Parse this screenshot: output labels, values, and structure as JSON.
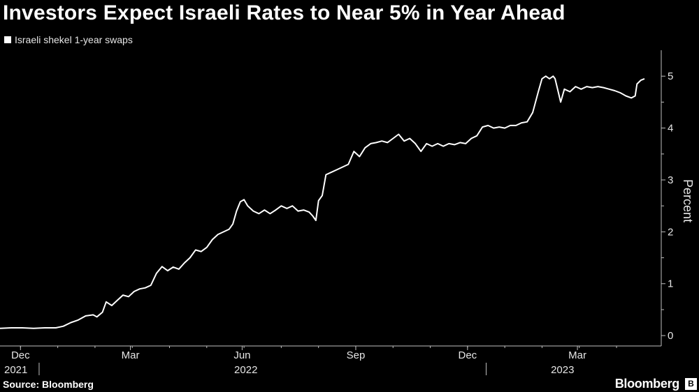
{
  "header": {
    "title": "Investors Expect Israeli Rates to Near 5% in Year Ahead",
    "legend_label": "Israeli shekel 1-year swaps"
  },
  "footer": {
    "source": "Source: Bloomberg",
    "brand": "Bloomberg",
    "brand_mark": "B"
  },
  "colors": {
    "background": "#000000",
    "line": "#ffffff",
    "axis": "#bfbfbf"
  },
  "chart_data": {
    "type": "line",
    "title": "Investors Expect Israeli Rates to Near 5% in Year Ahead",
    "ylabel": "Percent",
    "xlabel": "",
    "ylim": [
      -0.2,
      5.5
    ],
    "yticks": [
      0,
      1,
      2,
      3,
      4,
      5
    ],
    "x_unit": "months since 2021-11-15",
    "xlim": [
      0,
      17.3
    ],
    "month_ticks": [
      {
        "x": 0.55,
        "label": "Dec"
      },
      {
        "x": 3.5,
        "label": "Mar"
      },
      {
        "x": 6.5,
        "label": "Jun"
      },
      {
        "x": 9.55,
        "label": "Sep"
      },
      {
        "x": 12.55,
        "label": "Dec"
      },
      {
        "x": 15.5,
        "label": "Mar"
      }
    ],
    "year_labels": [
      {
        "x": 0.2,
        "label": "2021"
      },
      {
        "x": 6.6,
        "label": "2022"
      },
      {
        "x": 15.1,
        "label": "2023"
      }
    ],
    "year_dividers": [
      1.05,
      13.05
    ],
    "series": [
      {
        "name": "Israeli shekel 1-year swaps",
        "points": [
          [
            0.0,
            0.14
          ],
          [
            0.3,
            0.15
          ],
          [
            0.6,
            0.15
          ],
          [
            0.9,
            0.14
          ],
          [
            1.2,
            0.15
          ],
          [
            1.5,
            0.15
          ],
          [
            1.7,
            0.18
          ],
          [
            1.9,
            0.25
          ],
          [
            2.1,
            0.3
          ],
          [
            2.3,
            0.38
          ],
          [
            2.5,
            0.4
          ],
          [
            2.6,
            0.36
          ],
          [
            2.75,
            0.45
          ],
          [
            2.85,
            0.65
          ],
          [
            3.0,
            0.58
          ],
          [
            3.15,
            0.68
          ],
          [
            3.3,
            0.78
          ],
          [
            3.45,
            0.75
          ],
          [
            3.6,
            0.85
          ],
          [
            3.75,
            0.9
          ],
          [
            3.9,
            0.92
          ],
          [
            4.05,
            0.97
          ],
          [
            4.2,
            1.2
          ],
          [
            4.35,
            1.33
          ],
          [
            4.5,
            1.25
          ],
          [
            4.65,
            1.32
          ],
          [
            4.8,
            1.28
          ],
          [
            4.95,
            1.4
          ],
          [
            5.1,
            1.5
          ],
          [
            5.25,
            1.65
          ],
          [
            5.4,
            1.62
          ],
          [
            5.55,
            1.7
          ],
          [
            5.7,
            1.85
          ],
          [
            5.85,
            1.95
          ],
          [
            6.0,
            2.0
          ],
          [
            6.15,
            2.05
          ],
          [
            6.25,
            2.15
          ],
          [
            6.35,
            2.4
          ],
          [
            6.45,
            2.58
          ],
          [
            6.55,
            2.62
          ],
          [
            6.65,
            2.5
          ],
          [
            6.8,
            2.4
          ],
          [
            6.95,
            2.35
          ],
          [
            7.1,
            2.42
          ],
          [
            7.25,
            2.35
          ],
          [
            7.4,
            2.42
          ],
          [
            7.55,
            2.5
          ],
          [
            7.7,
            2.45
          ],
          [
            7.85,
            2.5
          ],
          [
            8.0,
            2.4
          ],
          [
            8.15,
            2.42
          ],
          [
            8.3,
            2.38
          ],
          [
            8.4,
            2.3
          ],
          [
            8.48,
            2.22
          ],
          [
            8.55,
            2.6
          ],
          [
            8.65,
            2.7
          ],
          [
            8.75,
            3.1
          ],
          [
            8.9,
            3.15
          ],
          [
            9.05,
            3.2
          ],
          [
            9.2,
            3.25
          ],
          [
            9.35,
            3.3
          ],
          [
            9.5,
            3.55
          ],
          [
            9.65,
            3.45
          ],
          [
            9.8,
            3.62
          ],
          [
            9.95,
            3.7
          ],
          [
            10.1,
            3.72
          ],
          [
            10.25,
            3.75
          ],
          [
            10.4,
            3.72
          ],
          [
            10.55,
            3.8
          ],
          [
            10.7,
            3.88
          ],
          [
            10.85,
            3.75
          ],
          [
            11.0,
            3.8
          ],
          [
            11.15,
            3.7
          ],
          [
            11.3,
            3.55
          ],
          [
            11.45,
            3.7
          ],
          [
            11.6,
            3.65
          ],
          [
            11.75,
            3.7
          ],
          [
            11.9,
            3.65
          ],
          [
            12.05,
            3.7
          ],
          [
            12.2,
            3.68
          ],
          [
            12.35,
            3.72
          ],
          [
            12.5,
            3.7
          ],
          [
            12.65,
            3.8
          ],
          [
            12.8,
            3.85
          ],
          [
            12.95,
            4.02
          ],
          [
            13.1,
            4.05
          ],
          [
            13.25,
            4.0
          ],
          [
            13.4,
            4.02
          ],
          [
            13.55,
            4.0
          ],
          [
            13.7,
            4.05
          ],
          [
            13.85,
            4.05
          ],
          [
            14.0,
            4.1
          ],
          [
            14.15,
            4.12
          ],
          [
            14.3,
            4.3
          ],
          [
            14.45,
            4.7
          ],
          [
            14.55,
            4.95
          ],
          [
            14.65,
            5.0
          ],
          [
            14.75,
            4.95
          ],
          [
            14.85,
            5.0
          ],
          [
            14.9,
            4.95
          ],
          [
            14.95,
            4.8
          ],
          [
            15.05,
            4.5
          ],
          [
            15.15,
            4.75
          ],
          [
            15.3,
            4.7
          ],
          [
            15.45,
            4.8
          ],
          [
            15.6,
            4.75
          ],
          [
            15.75,
            4.8
          ],
          [
            15.9,
            4.78
          ],
          [
            16.05,
            4.8
          ],
          [
            16.2,
            4.78
          ],
          [
            16.35,
            4.75
          ],
          [
            16.5,
            4.72
          ],
          [
            16.65,
            4.68
          ],
          [
            16.8,
            4.62
          ],
          [
            16.95,
            4.58
          ],
          [
            17.05,
            4.62
          ],
          [
            17.1,
            4.85
          ],
          [
            17.2,
            4.92
          ],
          [
            17.3,
            4.95
          ]
        ]
      }
    ]
  }
}
